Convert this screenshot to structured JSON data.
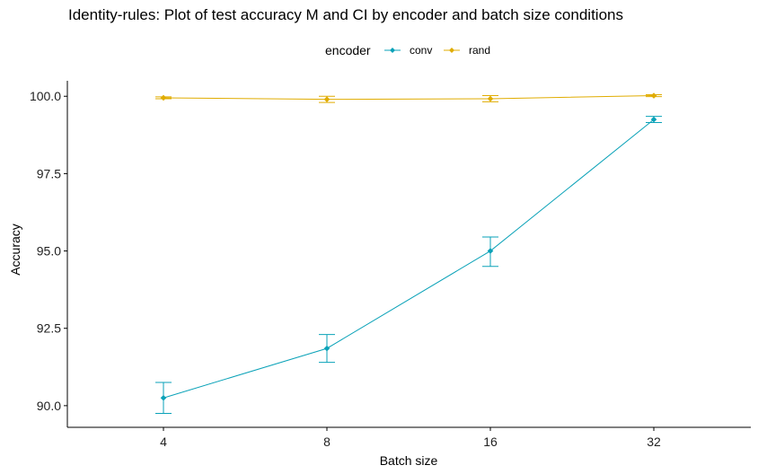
{
  "chart_data": {
    "type": "line",
    "title": "Identity-rules: Plot of test accuracy M and CI by encoder and batch size conditions",
    "xlabel": "Batch size",
    "ylabel": "Accuracy",
    "legend_title": "encoder",
    "legend_position": "top",
    "grid": false,
    "categories": [
      "4",
      "8",
      "16",
      "32"
    ],
    "ylim": [
      89.3,
      100.5
    ],
    "yticks": [
      "90.0",
      "92.5",
      "95.0",
      "97.5",
      "100.0"
    ],
    "series": [
      {
        "name": "conv",
        "color": "#0aa2b8",
        "values": [
          90.25,
          91.85,
          95.0,
          99.25
        ],
        "ci_lower": [
          89.75,
          91.4,
          94.5,
          99.15
        ],
        "ci_upper": [
          90.75,
          92.3,
          95.45,
          99.35
        ]
      },
      {
        "name": "rand",
        "color": "#e0ac00",
        "values": [
          99.95,
          99.9,
          99.92,
          100.02
        ],
        "ci_lower": [
          99.92,
          99.8,
          99.82,
          99.99
        ],
        "ci_upper": [
          99.98,
          100.0,
          100.02,
          100.05
        ]
      }
    ]
  }
}
